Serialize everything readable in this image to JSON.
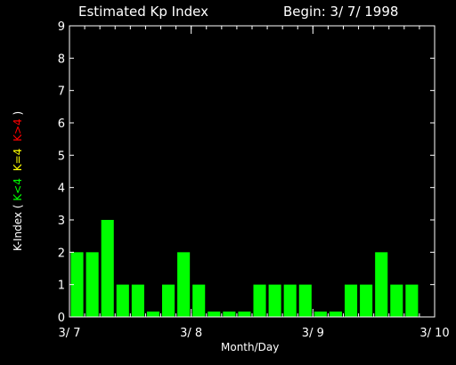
{
  "chart_data": {
    "type": "bar",
    "title": "Estimated Kp Index",
    "subtitle": "Begin: 3/ 7/ 1998",
    "xlabel": "Month/Day",
    "ylabel": {
      "prefix": "K-Index ( ",
      "legend": [
        {
          "text": "K<4",
          "color": "#00ff00"
        },
        {
          "text": "K=4",
          "color": "#ffff00"
        },
        {
          "text": "K>4",
          "color": "#ff0000"
        }
      ],
      "suffix": " )"
    },
    "ylim": [
      0,
      9
    ],
    "yticks": [
      "0",
      "1",
      "2",
      "3",
      "4",
      "5",
      "6",
      "7",
      "8",
      "9"
    ],
    "xticks": [
      {
        "label": "3/ 7",
        "pos": 0
      },
      {
        "label": "3/ 8",
        "pos": 8
      },
      {
        "label": "3/ 9",
        "pos": 16
      },
      {
        "label": "3/ 10",
        "pos": 24
      }
    ],
    "bar_color": "#00ff00",
    "values": [
      2,
      2,
      3,
      1,
      1,
      0.1667,
      1,
      2,
      1,
      0.1667,
      0.1667,
      0.1667,
      1,
      1,
      1,
      1,
      0.1667,
      0.1667,
      1,
      1,
      2,
      1,
      1,
      0
    ]
  }
}
